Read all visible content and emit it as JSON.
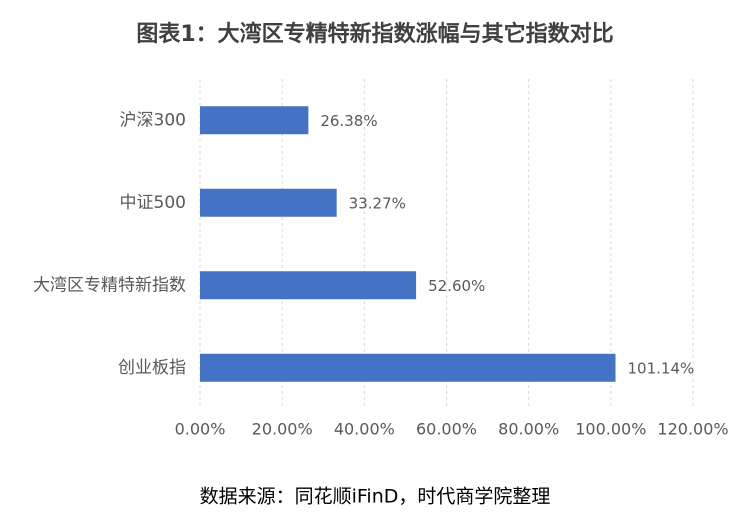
{
  "chart_data": {
    "type": "bar",
    "orientation": "horizontal",
    "title": "图表1：大湾区专精特新指数涨幅与其它指数对比",
    "source": "数据来源：同花顺iFinD，时代商学院整理",
    "categories": [
      "沪深300",
      "中证500",
      "大湾区专精特新指数",
      "创业板指"
    ],
    "values": [
      26.38,
      33.27,
      52.6,
      101.14
    ],
    "value_labels": [
      "26.38%",
      "33.27%",
      "52.60%",
      "101.14%"
    ],
    "color": "#4472c4",
    "xlim": [
      0,
      120
    ],
    "xticks": [
      {
        "value": 0,
        "label": "0.00%"
      },
      {
        "value": 20,
        "label": "20.00%"
      },
      {
        "value": 40,
        "label": "40.00%"
      },
      {
        "value": 60,
        "label": "60.00%"
      },
      {
        "value": 80,
        "label": "80.00%"
      },
      {
        "value": 100,
        "label": "100.00%"
      },
      {
        "value": 120,
        "label": "120.00%"
      }
    ],
    "grid": true
  }
}
